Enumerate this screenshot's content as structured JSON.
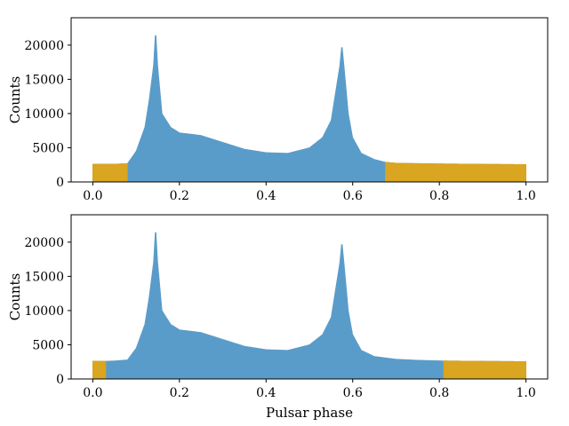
{
  "chart_data": [
    {
      "type": "area",
      "xlabel": "",
      "ylabel": "Counts",
      "xlim": [
        -0.05,
        1.05
      ],
      "ylim": [
        0,
        24000
      ],
      "xticks": [
        0.0,
        0.2,
        0.4,
        0.6,
        0.8,
        1.0
      ],
      "xtick_labels": [
        "0.0",
        "0.2",
        "0.4",
        "0.6",
        "0.8",
        "1.0"
      ],
      "yticks": [
        0,
        5000,
        10000,
        15000,
        20000
      ],
      "ytick_labels": [
        "0",
        "5000",
        "10000",
        "15000",
        "20000"
      ],
      "grid": false,
      "off_pulse_ranges": [
        [
          0.0,
          0.08
        ],
        [
          0.675,
          1.0
        ]
      ],
      "series": [
        {
          "color": "#5a9cc9",
          "x": [
            0.0,
            0.05,
            0.08,
            0.1,
            0.12,
            0.13,
            0.14,
            0.145,
            0.15,
            0.16,
            0.18,
            0.2,
            0.25,
            0.3,
            0.35,
            0.4,
            0.45,
            0.5,
            0.53,
            0.55,
            0.56,
            0.57,
            0.575,
            0.58,
            0.59,
            0.6,
            0.62,
            0.65,
            0.675,
            0.7,
            0.8,
            0.9,
            1.0
          ],
          "y": [
            2600,
            2600,
            2700,
            4500,
            8000,
            12000,
            17000,
            22500,
            17000,
            10000,
            8000,
            7200,
            6800,
            5800,
            4800,
            4300,
            4200,
            5000,
            6500,
            9000,
            13000,
            17000,
            20300,
            17000,
            10000,
            6500,
            4200,
            3300,
            2900,
            2750,
            2650,
            2600,
            2550
          ]
        }
      ]
    },
    {
      "type": "area",
      "xlabel": "Pulsar phase",
      "ylabel": "Counts",
      "xlim": [
        -0.05,
        1.05
      ],
      "ylim": [
        0,
        24000
      ],
      "xticks": [
        0.0,
        0.2,
        0.4,
        0.6,
        0.8,
        1.0
      ],
      "xtick_labels": [
        "0.0",
        "0.2",
        "0.4",
        "0.6",
        "0.8",
        "1.0"
      ],
      "yticks": [
        0,
        5000,
        10000,
        15000,
        20000
      ],
      "ytick_labels": [
        "0",
        "5000",
        "10000",
        "15000",
        "20000"
      ],
      "grid": false,
      "off_pulse_ranges": [
        [
          0.0,
          0.03
        ],
        [
          0.81,
          1.0
        ]
      ],
      "series": [
        {
          "color": "#5a9cc9",
          "x": [
            0.0,
            0.03,
            0.05,
            0.08,
            0.1,
            0.12,
            0.13,
            0.14,
            0.145,
            0.15,
            0.16,
            0.18,
            0.2,
            0.25,
            0.3,
            0.35,
            0.4,
            0.45,
            0.5,
            0.53,
            0.55,
            0.56,
            0.57,
            0.575,
            0.58,
            0.59,
            0.6,
            0.62,
            0.65,
            0.7,
            0.75,
            0.81,
            0.9,
            1.0
          ],
          "y": [
            2600,
            2600,
            2650,
            2800,
            4500,
            8000,
            12000,
            17000,
            22500,
            17000,
            10000,
            8000,
            7200,
            6800,
            5800,
            4800,
            4300,
            4200,
            5000,
            6500,
            9000,
            13000,
            17000,
            20300,
            17000,
            10000,
            6500,
            4200,
            3300,
            2900,
            2750,
            2650,
            2600,
            2550
          ]
        }
      ]
    }
  ],
  "colors": {
    "on_pulse": "#5a9cc9",
    "off_pulse": "#daa520"
  }
}
